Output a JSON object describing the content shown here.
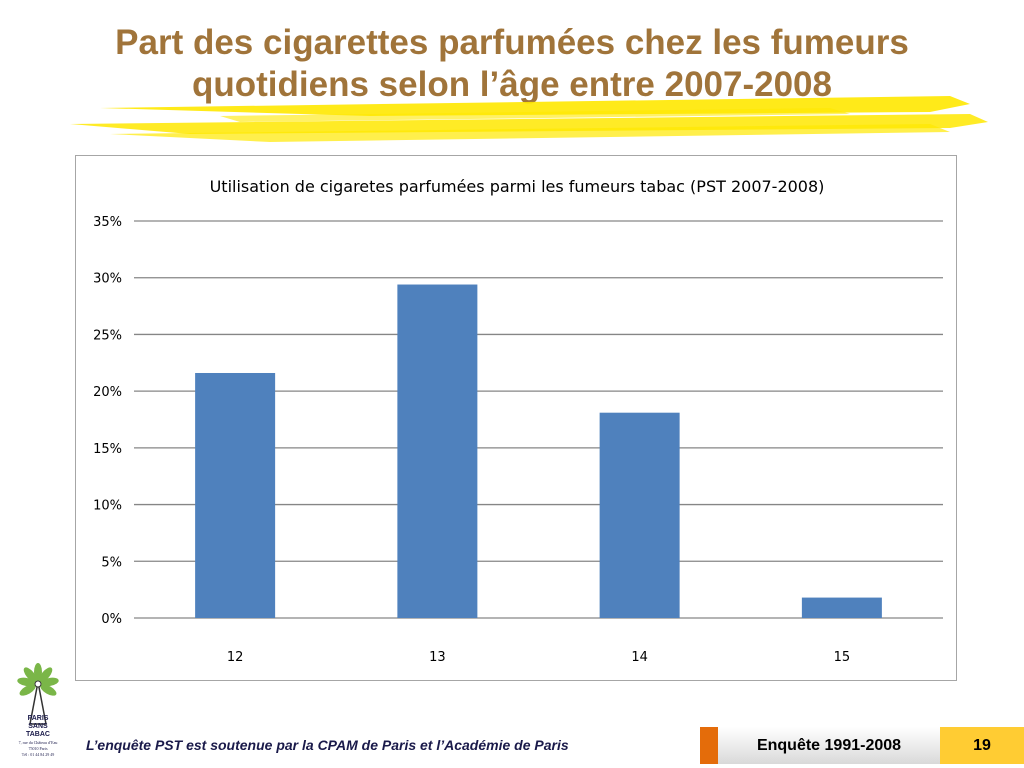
{
  "slide": {
    "title": "Part des cigarettes parfumées chez les fumeurs quotidiens selon l’âge entre 2007-2008"
  },
  "chart_data": {
    "type": "bar",
    "title": "Utilisation  de cigaretes parfumées  parmi les fumeurs tabac  (PST  2007-2008)",
    "categories": [
      "12",
      "13",
      "14",
      "15"
    ],
    "values": [
      21.6,
      29.4,
      18.1,
      1.8
    ],
    "y_ticks": [
      "0%",
      "5%",
      "10%",
      "15%",
      "20%",
      "25%",
      "30%",
      "35%"
    ],
    "ylim": [
      0,
      35
    ],
    "grid": true,
    "bar_color": "#4f81bd"
  },
  "logo": {
    "text_lines": [
      "PARIS",
      "SANS",
      "TABAC"
    ],
    "address": [
      "7, rue du Château d’Eau",
      "75010 Paris",
      "Tél : 01 44 84 29 49"
    ]
  },
  "footer": {
    "credit": "L’enquête PST est soutenue par la CPAM de Paris et l’Académie de Paris",
    "survey_label": "Enquête 1991-2008",
    "page_number": "19"
  },
  "colors": {
    "title": "#a0743a",
    "highlight": "#ffe800",
    "accent_orange": "#e46c0a",
    "page_badge": "#ffcc33"
  }
}
